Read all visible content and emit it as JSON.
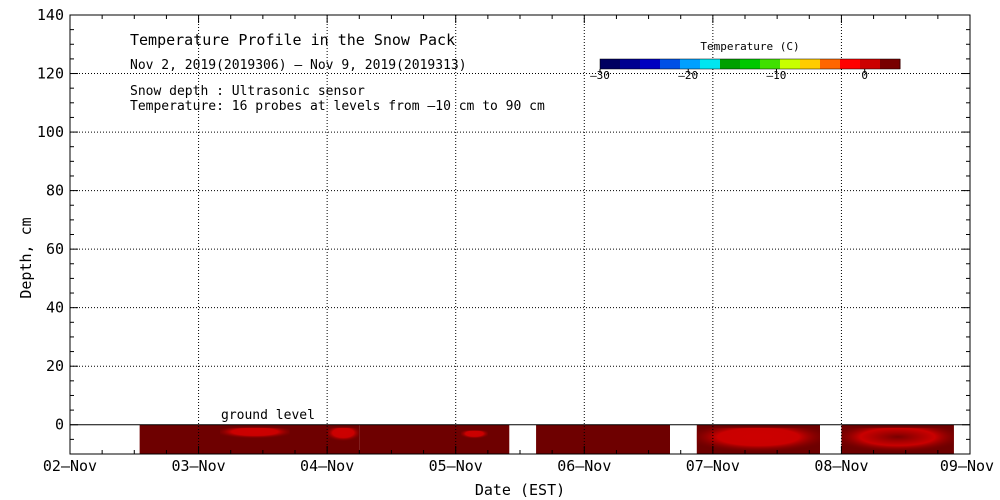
{
  "chart_data": {
    "type": "heatmap",
    "title": "Temperature Profile in the Snow Pack",
    "subtitle": "Nov  2, 2019(2019306) – Nov  9, 2019(2019313)",
    "notes": [
      "Snow depth : Ultrasonic sensor",
      "Temperature: 16 probes at levels from –10 cm to 90 cm"
    ],
    "xlabel": "Date (EST)",
    "ylabel": "Depth, cm",
    "x_tick_labels": [
      "02–Nov",
      "03–Nov",
      "04–Nov",
      "05–Nov",
      "06–Nov",
      "07–Nov",
      "08–Nov",
      "09–Nov"
    ],
    "xlim": [
      "2019-11-02",
      "2019-11-09"
    ],
    "ylim": [
      -10,
      140
    ],
    "y_ticks": [
      0,
      20,
      40,
      60,
      80,
      100,
      120,
      140
    ],
    "grid": true,
    "ground_level_label": "ground level",
    "ground_level_depth": 0,
    "colorbar": {
      "title": "Temperature (C)",
      "range": [
        -30,
        4
      ],
      "tick_values": [
        -30,
        -20,
        -10,
        0
      ],
      "tick_labels": [
        "–30",
        "–20",
        "–10",
        "0"
      ],
      "colors": [
        "#000060",
        "#000090",
        "#0000c0",
        "#0050e6",
        "#00a0ff",
        "#00e6f0",
        "#00a000",
        "#00c800",
        "#40e000",
        "#c8ff00",
        "#ffcc00",
        "#ff6600",
        "#ff0000",
        "#cc0000",
        "#780000"
      ]
    },
    "data_segments": [
      {
        "start": "2019-11-02 13:00",
        "end": "2019-11-04 06:00"
      },
      {
        "start": "2019-11-04 06:00",
        "end": "2019-11-05 10:00"
      },
      {
        "start": "2019-11-05 15:00",
        "end": "2019-11-06 16:00"
      },
      {
        "start": "2019-11-06 21:00",
        "end": "2019-11-07 20:00"
      },
      {
        "start": "2019-11-08 00:00",
        "end": "2019-11-08 21:00"
      }
    ],
    "warm_patches": [
      {
        "start": "2019-11-03 04:00",
        "end": "2019-11-03 17:00",
        "depth_top": -1,
        "depth_bottom": -5,
        "temperature": 1
      },
      {
        "start": "2019-11-04 00:00",
        "end": "2019-11-04 06:00",
        "depth_top": -1,
        "depth_bottom": -6,
        "temperature": 1.5
      },
      {
        "start": "2019-11-05 01:00",
        "end": "2019-11-05 06:00",
        "depth_top": -2,
        "depth_bottom": -5,
        "temperature": 1
      },
      {
        "start": "2019-11-06 21:00",
        "end": "2019-11-07 20:00",
        "depth_top": -1,
        "depth_bottom": -10,
        "temperature": 1.5
      },
      {
        "start": "2019-11-08 00:00",
        "end": "2019-11-08 21:00",
        "depth_top": -1,
        "depth_bottom": -10,
        "temperature": 2.5
      }
    ]
  }
}
